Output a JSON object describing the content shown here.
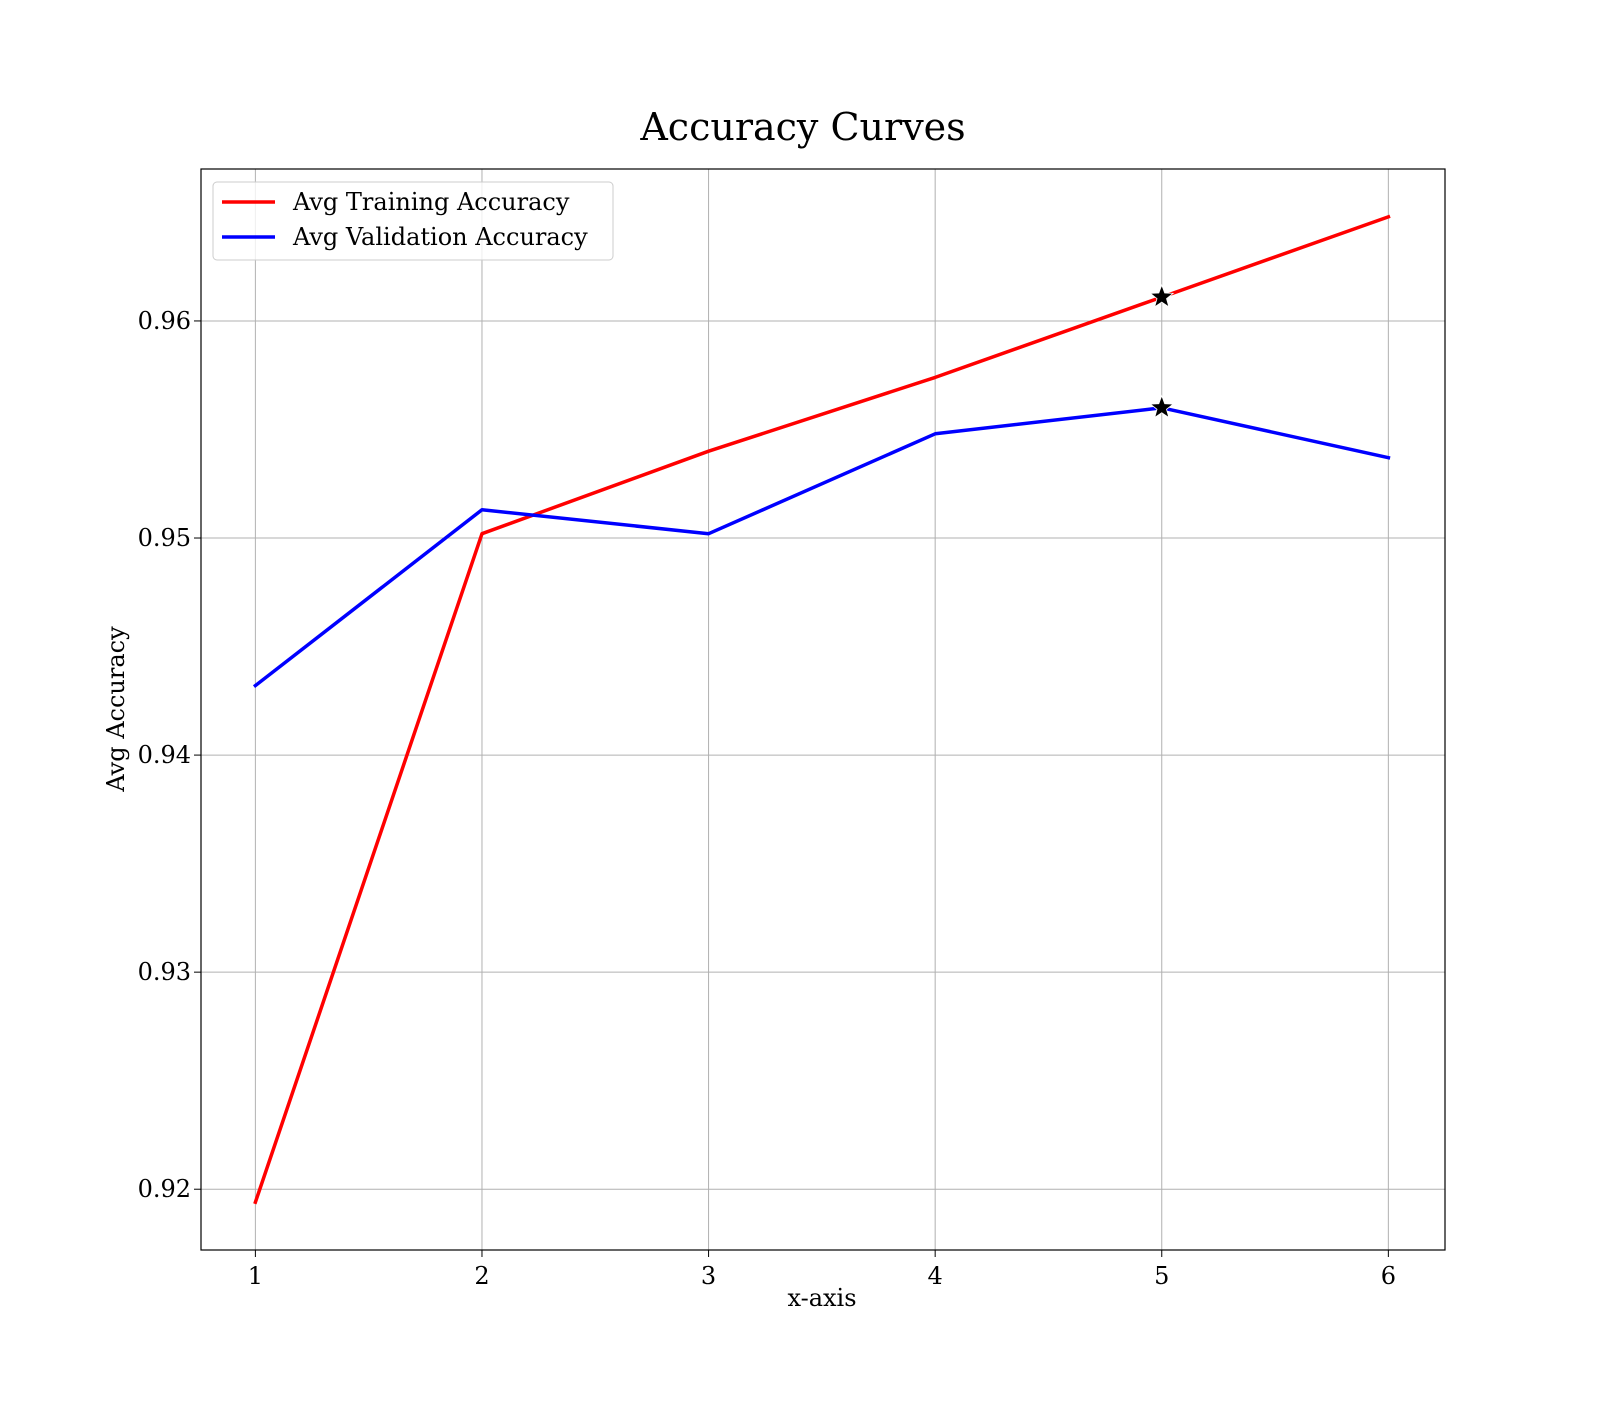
{
  "chart_data": {
    "type": "line",
    "title": "Accuracy Curves",
    "xlabel": "x-axis",
    "ylabel": "Avg Accuracy",
    "x": [
      1,
      2,
      3,
      4,
      5,
      6
    ],
    "xlim": [
      0.76,
      6.25
    ],
    "ylim": [
      0.9172,
      0.967
    ],
    "xticks": [
      1,
      2,
      3,
      4,
      5,
      6
    ],
    "yticks": [
      0.92,
      0.93,
      0.94,
      0.95,
      0.96
    ],
    "ytick_labels": [
      "0.92",
      "0.93",
      "0.94",
      "0.95",
      "0.96"
    ],
    "grid": true,
    "legend_position": "upper-left",
    "series": [
      {
        "name": "Avg Training Accuracy",
        "color": "#ff0000",
        "values": [
          0.9194,
          0.9502,
          0.954,
          0.9574,
          0.9611,
          0.9648
        ]
      },
      {
        "name": "Avg Validation Accuracy",
        "color": "#0000ff",
        "values": [
          0.9432,
          0.9513,
          0.9502,
          0.9548,
          0.956,
          0.9537
        ]
      }
    ],
    "markers": [
      {
        "series": "Avg Training Accuracy",
        "x": 5,
        "y": 0.9611,
        "shape": "star-icon"
      },
      {
        "series": "Avg Validation Accuracy",
        "x": 5,
        "y": 0.956,
        "shape": "star-icon"
      }
    ]
  }
}
